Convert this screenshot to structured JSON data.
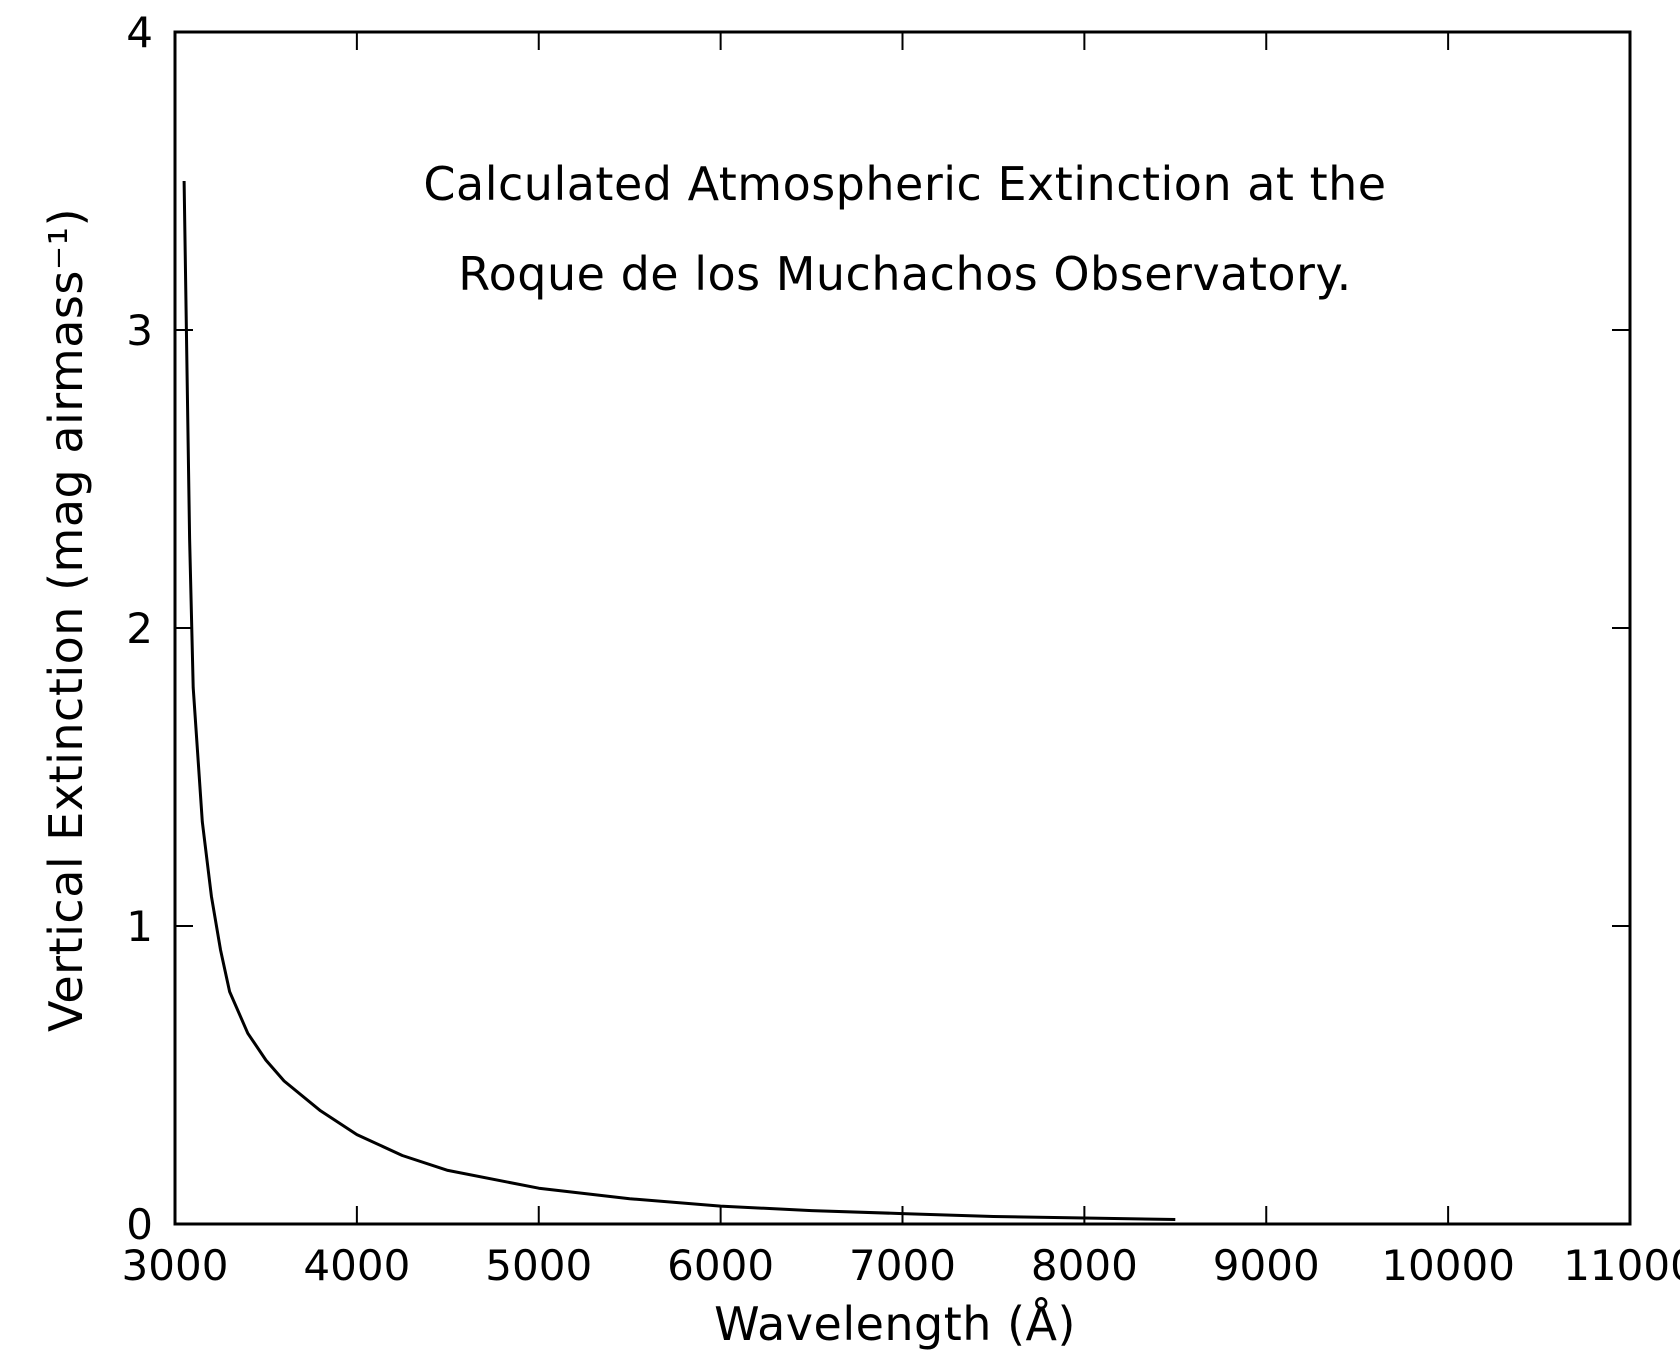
{
  "chart_data": {
    "type": "line",
    "title_lines": [
      "Calculated  Atmospheric  Extinction  at  the",
      "Roque  de los  Muchachos  Observatory."
    ],
    "xlabel": "Wavelength   (Å)",
    "ylabel": "Vertical  Extinction  (mag airmass⁻¹)",
    "xlim": [
      3000,
      11000
    ],
    "ylim": [
      0,
      4
    ],
    "x_ticks": [
      3000,
      4000,
      5000,
      6000,
      7000,
      8000,
      9000,
      10000,
      11000
    ],
    "x_tick_labels": [
      "3000",
      "4000",
      "5000",
      "6000",
      "7000",
      "8000",
      "9000",
      "10000",
      "11000"
    ],
    "y_ticks": [
      0,
      1,
      2,
      3,
      4
    ],
    "y_tick_labels": [
      "0",
      "1",
      "2",
      "3",
      "4"
    ],
    "grid": false,
    "legend": "none",
    "series": [
      {
        "color": "#000000",
        "x": [
          3050,
          3080,
          3100,
          3150,
          3200,
          3250,
          3300,
          3400,
          3500,
          3600,
          3800,
          4000,
          4250,
          4500,
          5000,
          5500,
          6000,
          6500,
          7000,
          7500,
          8000,
          8500
        ],
        "y": [
          3.5,
          2.3,
          1.8,
          1.35,
          1.1,
          0.92,
          0.78,
          0.64,
          0.55,
          0.48,
          0.38,
          0.3,
          0.23,
          0.18,
          0.12,
          0.085,
          0.06,
          0.045,
          0.035,
          0.025,
          0.02,
          0.015
        ]
      }
    ]
  }
}
